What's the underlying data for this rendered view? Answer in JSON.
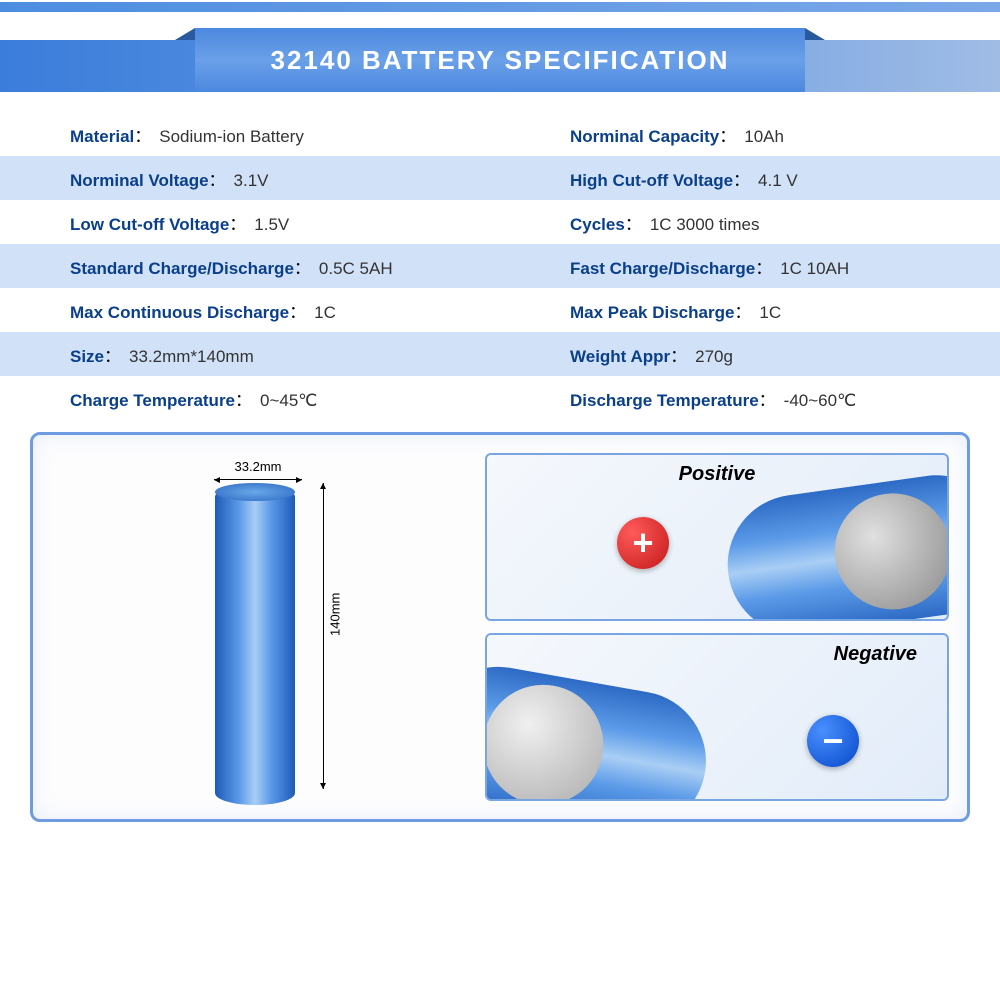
{
  "title": "32140 BATTERY SPECIFICATION",
  "colors": {
    "accent": "#0a3f8a",
    "row_alt_bg": "#d1e1f7",
    "banner_gradient": [
      "#3b7ddb",
      "#a0bce5"
    ],
    "battery_blue": "#4c88df",
    "positive_badge": "#e42222",
    "negative_badge": "#1a56d6"
  },
  "specs": [
    [
      {
        "label": "Material",
        "value": "Sodium-ion Battery"
      },
      {
        "label": "Norminal Capacity",
        "value": "10Ah"
      }
    ],
    [
      {
        "label": "Norminal Voltage",
        "value": "3.1V"
      },
      {
        "label": "High Cut-off Voltage",
        "value": "4.1 V"
      }
    ],
    [
      {
        "label": "Low Cut-off Voltage",
        "value": "1.5V"
      },
      {
        "label": "Cycles",
        "value": "1C 3000 times"
      }
    ],
    [
      {
        "label": "Standard Charge/Discharge",
        "value": "0.5C  5AH"
      },
      {
        "label": "Fast Charge/Discharge",
        "value": "1C  10AH"
      }
    ],
    [
      {
        "label": "Max Continuous Discharge",
        "value": "1C"
      },
      {
        "label": "Max Peak Discharge",
        "value": "1C"
      }
    ],
    [
      {
        "label": "Size",
        "value": "33.2mm*140mm"
      },
      {
        "label": "Weight Appr",
        "value": "270g"
      }
    ],
    [
      {
        "label": "Charge Temperature",
        "value": "0~45℃"
      },
      {
        "label": "Discharge Temperature",
        "value": "-40~60℃"
      }
    ]
  ],
  "diagram": {
    "width_label": "33.2mm",
    "height_label": "140mm",
    "positive_label": "Positive",
    "negative_label": "Negative",
    "positive_symbol": "+",
    "negative_symbol": "−"
  }
}
